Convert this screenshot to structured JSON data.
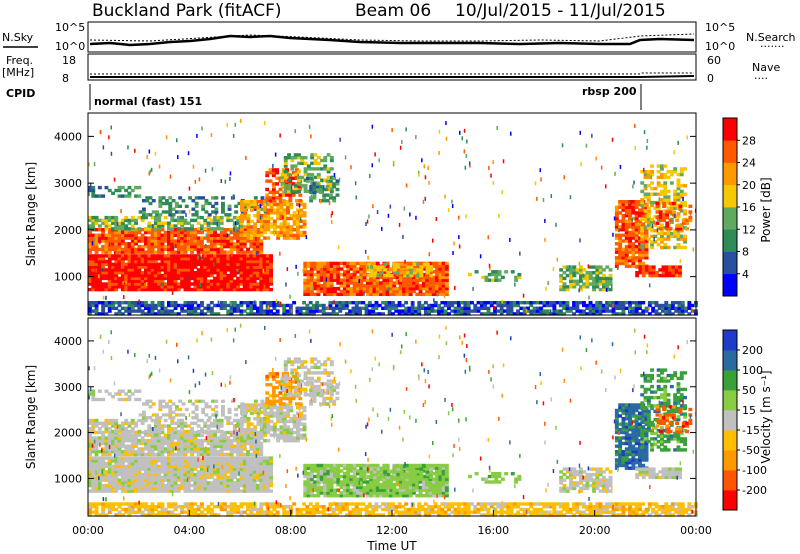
{
  "header": {
    "station": "Buckland Park (fitACF)",
    "beam": "Beam 06",
    "date_range": "10/Jul/2015 - 11/Jul/2015"
  },
  "summary_panels": {
    "nsky_label": "N.Sky",
    "nsearch_label": "N.Search",
    "nsearch_dots": ".......",
    "noise_ticks": [
      "10^5",
      "10^0"
    ],
    "freq_label": "Freq.",
    "freq_unit": "[MHz]",
    "freq_ticks": [
      "18",
      "8"
    ],
    "nave_label": "Nave",
    "nave_dots": "....",
    "nave_ticks": [
      "60",
      "0"
    ],
    "cpid_label": "CPID",
    "cpid_modes": [
      "normal (fast) 151",
      "rbsp 200"
    ]
  },
  "colors": {
    "power": [
      "#0000ff",
      "#2b4fa0",
      "#2e8b57",
      "#5faa5f",
      "#f5c800",
      "#ff9900",
      "#ff5a00",
      "#ff0000"
    ],
    "velocity": [
      "#ff0000",
      "#ff5500",
      "#ff9900",
      "#ffbf00",
      "#c0c0c0",
      "#88cc44",
      "#3aa03a",
      "#2b6aa0",
      "#1e3cc8"
    ],
    "ground": "#bebebe"
  },
  "chart_data": [
    {
      "type": "heatmap",
      "name": "power",
      "ylabel": "Slant Range [km]",
      "ylim": [
        180,
        4500
      ],
      "yticks": [
        1000,
        2000,
        3000,
        4000
      ],
      "xlim_hours": [
        0,
        24
      ],
      "colorbar": {
        "label": "Power [dB]",
        "ticks": [
          4,
          8,
          12,
          16,
          20,
          24,
          28
        ],
        "range": [
          0,
          32
        ]
      }
    },
    {
      "type": "heatmap",
      "name": "velocity",
      "ylabel": "Slant Range [km]",
      "xlabel": "Time UT",
      "ylim": [
        180,
        4500
      ],
      "yticks": [
        1000,
        2000,
        3000,
        4000
      ],
      "xlim_hours": [
        0,
        24
      ],
      "xticks": [
        "00:00",
        "04:00",
        "08:00",
        "12:00",
        "16:00",
        "20:00",
        "00:00"
      ],
      "colorbar": {
        "label": "Velocity [m s⁻¹]",
        "ticks": [
          200,
          100,
          50,
          15,
          -15,
          -50,
          -100,
          -200
        ]
      }
    }
  ]
}
